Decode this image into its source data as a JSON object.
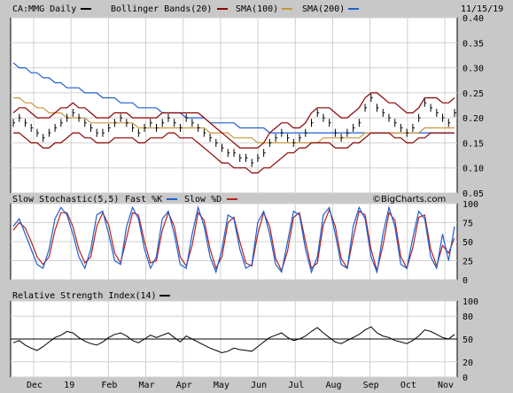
{
  "chart_data": {
    "type": "line",
    "date_label": "11/15/19",
    "watermark": "©BigCharts.com",
    "x_ticks": [
      "Dec",
      "19",
      "Feb",
      "Mar",
      "Apr",
      "May",
      "Jun",
      "Jul",
      "Aug",
      "Sep",
      "Oct",
      "Nov"
    ],
    "colors": {
      "price": "#000000",
      "bollinger": "#8b0000",
      "sma100": "#c8963c",
      "sma200": "#1e5fd0",
      "fast_k": "#1e5fd0",
      "slow_d": "#b22222",
      "rsi": "#000000"
    },
    "price_panel": {
      "legend": {
        "symbol": "CA:MMG Daily",
        "bollinger": "Bollinger Bands(20)",
        "sma100": "SMA(100)",
        "sma200": "SMA(200)"
      },
      "ylim": [
        0.05,
        0.4
      ],
      "y_ticks": [
        "0.40",
        "0.35",
        "0.30",
        "0.25",
        "0.20",
        "0.15",
        "0.10",
        "0.05"
      ],
      "close": [
        0.19,
        0.2,
        0.19,
        0.18,
        0.17,
        0.16,
        0.17,
        0.18,
        0.19,
        0.2,
        0.21,
        0.2,
        0.19,
        0.18,
        0.17,
        0.17,
        0.18,
        0.19,
        0.2,
        0.19,
        0.18,
        0.17,
        0.18,
        0.19,
        0.18,
        0.19,
        0.2,
        0.19,
        0.18,
        0.2,
        0.19,
        0.18,
        0.17,
        0.16,
        0.15,
        0.14,
        0.13,
        0.13,
        0.12,
        0.12,
        0.11,
        0.12,
        0.13,
        0.15,
        0.16,
        0.17,
        0.16,
        0.15,
        0.16,
        0.17,
        0.19,
        0.21,
        0.2,
        0.19,
        0.17,
        0.16,
        0.17,
        0.18,
        0.19,
        0.22,
        0.24,
        0.22,
        0.21,
        0.2,
        0.19,
        0.18,
        0.17,
        0.18,
        0.2,
        0.23,
        0.22,
        0.21,
        0.2,
        0.19,
        0.21
      ],
      "bollinger_upper": [
        0.21,
        0.22,
        0.22,
        0.21,
        0.2,
        0.2,
        0.2,
        0.21,
        0.22,
        0.22,
        0.23,
        0.22,
        0.22,
        0.21,
        0.2,
        0.2,
        0.2,
        0.21,
        0.21,
        0.21,
        0.2,
        0.2,
        0.2,
        0.2,
        0.2,
        0.21,
        0.21,
        0.21,
        0.21,
        0.21,
        0.21,
        0.21,
        0.2,
        0.19,
        0.18,
        0.17,
        0.16,
        0.15,
        0.14,
        0.14,
        0.14,
        0.14,
        0.15,
        0.17,
        0.18,
        0.19,
        0.19,
        0.18,
        0.18,
        0.19,
        0.21,
        0.22,
        0.22,
        0.22,
        0.21,
        0.2,
        0.2,
        0.21,
        0.22,
        0.24,
        0.25,
        0.25,
        0.24,
        0.23,
        0.23,
        0.22,
        0.21,
        0.21,
        0.22,
        0.24,
        0.24,
        0.24,
        0.23,
        0.23,
        0.24
      ],
      "bollinger_lower": [
        0.17,
        0.17,
        0.16,
        0.15,
        0.15,
        0.14,
        0.14,
        0.15,
        0.15,
        0.16,
        0.17,
        0.17,
        0.16,
        0.16,
        0.15,
        0.15,
        0.15,
        0.16,
        0.16,
        0.16,
        0.16,
        0.15,
        0.15,
        0.16,
        0.16,
        0.16,
        0.17,
        0.17,
        0.16,
        0.16,
        0.16,
        0.15,
        0.14,
        0.13,
        0.12,
        0.11,
        0.11,
        0.1,
        0.1,
        0.1,
        0.09,
        0.09,
        0.1,
        0.1,
        0.11,
        0.12,
        0.13,
        0.13,
        0.14,
        0.14,
        0.15,
        0.15,
        0.15,
        0.15,
        0.14,
        0.14,
        0.14,
        0.15,
        0.15,
        0.16,
        0.17,
        0.17,
        0.17,
        0.17,
        0.16,
        0.16,
        0.15,
        0.15,
        0.16,
        0.16,
        0.17,
        0.17,
        0.17,
        0.17,
        0.17
      ],
      "sma100": [
        0.24,
        0.24,
        0.23,
        0.23,
        0.22,
        0.22,
        0.21,
        0.21,
        0.21,
        0.2,
        0.2,
        0.2,
        0.2,
        0.19,
        0.19,
        0.19,
        0.19,
        0.19,
        0.19,
        0.19,
        0.19,
        0.18,
        0.18,
        0.18,
        0.18,
        0.18,
        0.18,
        0.18,
        0.18,
        0.18,
        0.18,
        0.18,
        0.18,
        0.17,
        0.17,
        0.17,
        0.17,
        0.16,
        0.16,
        0.16,
        0.16,
        0.15,
        0.15,
        0.15,
        0.15,
        0.15,
        0.15,
        0.15,
        0.15,
        0.15,
        0.15,
        0.15,
        0.16,
        0.16,
        0.16,
        0.16,
        0.16,
        0.16,
        0.16,
        0.17,
        0.17,
        0.17,
        0.17,
        0.17,
        0.17,
        0.17,
        0.17,
        0.17,
        0.17,
        0.18,
        0.18,
        0.18,
        0.18,
        0.18,
        0.18
      ],
      "sma200": [
        0.31,
        0.3,
        0.3,
        0.29,
        0.29,
        0.28,
        0.28,
        0.27,
        0.27,
        0.26,
        0.26,
        0.26,
        0.25,
        0.25,
        0.25,
        0.24,
        0.24,
        0.24,
        0.23,
        0.23,
        0.23,
        0.22,
        0.22,
        0.22,
        0.22,
        0.21,
        0.21,
        0.21,
        0.21,
        0.2,
        0.2,
        0.2,
        0.2,
        0.19,
        0.19,
        0.19,
        0.19,
        0.19,
        0.18,
        0.18,
        0.18,
        0.18,
        0.18,
        0.17,
        0.17,
        0.17,
        0.17,
        0.17,
        0.17,
        0.17,
        0.17,
        0.17,
        0.17,
        0.17,
        0.17,
        0.17,
        0.17,
        0.17,
        0.17,
        0.17,
        0.17,
        0.17,
        0.17,
        0.17,
        0.17,
        0.17,
        0.17,
        0.17,
        0.17,
        0.17,
        0.17,
        0.17,
        0.17,
        0.17,
        0.17
      ]
    },
    "stoch_panel": {
      "legend": {
        "title": "Slow Stochastic(5,5)",
        "fast": "Fast %K",
        "slow": "Slow %D"
      },
      "ylim": [
        0,
        100
      ],
      "y_ticks": [
        "100",
        "75",
        "50",
        "25",
        "0"
      ],
      "fast_k": [
        70,
        80,
        60,
        40,
        20,
        15,
        40,
        80,
        95,
        85,
        60,
        30,
        15,
        40,
        85,
        90,
        60,
        25,
        20,
        70,
        95,
        80,
        40,
        15,
        30,
        80,
        90,
        60,
        20,
        15,
        60,
        95,
        70,
        30,
        10,
        40,
        85,
        80,
        40,
        15,
        20,
        75,
        90,
        60,
        20,
        10,
        50,
        90,
        85,
        40,
        10,
        30,
        85,
        95,
        60,
        20,
        15,
        70,
        95,
        80,
        30,
        10,
        60,
        95,
        70,
        20,
        15,
        55,
        90,
        80,
        30,
        15,
        60,
        25,
        70
      ],
      "slow_d": [
        65,
        75,
        68,
        50,
        30,
        20,
        30,
        65,
        88,
        88,
        70,
        40,
        22,
        30,
        70,
        88,
        72,
        35,
        22,
        55,
        88,
        85,
        50,
        22,
        25,
        65,
        88,
        70,
        30,
        18,
        45,
        88,
        78,
        40,
        15,
        30,
        75,
        82,
        50,
        22,
        18,
        60,
        88,
        70,
        28,
        12,
        38,
        82,
        88,
        50,
        15,
        22,
        72,
        92,
        70,
        28,
        15,
        55,
        90,
        85,
        40,
        12,
        45,
        88,
        78,
        30,
        15,
        42,
        82,
        85,
        40,
        18,
        45,
        35,
        55
      ]
    },
    "rsi_panel": {
      "legend": {
        "title": "Relative Strength Index(14)"
      },
      "ylim": [
        0,
        100
      ],
      "y_ticks": [
        "100",
        "80",
        "50",
        "20",
        "0"
      ],
      "rsi": [
        45,
        48,
        42,
        38,
        35,
        40,
        46,
        52,
        55,
        60,
        58,
        52,
        47,
        44,
        42,
        46,
        52,
        56,
        58,
        54,
        48,
        45,
        50,
        55,
        52,
        55,
        58,
        52,
        46,
        54,
        50,
        46,
        42,
        38,
        35,
        32,
        34,
        38,
        36,
        35,
        34,
        40,
        46,
        52,
        55,
        58,
        52,
        48,
        50,
        54,
        60,
        65,
        58,
        52,
        46,
        44,
        48,
        52,
        56,
        62,
        66,
        58,
        54,
        52,
        48,
        46,
        44,
        48,
        54,
        62,
        60,
        56,
        52,
        50,
        56
      ]
    }
  }
}
